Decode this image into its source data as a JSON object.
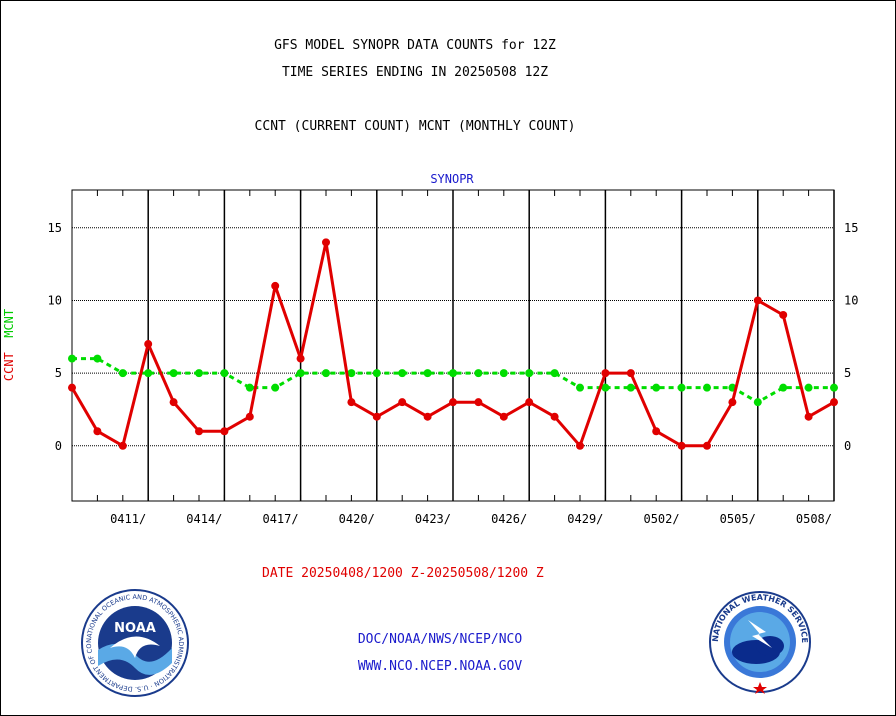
{
  "header": {
    "title_line1": "GFS MODEL SYNOPR DATA COUNTS for 12Z",
    "title_line2": "TIME SERIES ENDING IN 20250508 12Z",
    "subtitle": "CCNT (CURRENT COUNT) MCNT (MONTHLY COUNT)"
  },
  "ylabel": {
    "ccnt": "CCNT",
    "mcnt": "MCNT"
  },
  "footer": {
    "date_range": "DATE 20250408/1200 Z-20250508/1200 Z",
    "line1": "DOC/NOAA/NWS/NCEP/NCO",
    "line2": "WWW.NCO.NCEP.NOAA.GOV"
  },
  "logos": {
    "noaa_text": "NOAA",
    "noaa_ring": "NATIONAL OCEANIC AND ATMOSPHERIC ADMINISTRATION · U.S. DEPARTMENT OF COMMERCE ·",
    "nws_ring": "NATIONAL WEATHER SERVICE"
  },
  "colors": {
    "ccnt": "#e00000",
    "mcnt": "#00dd00",
    "plot_title": "#1a1acc",
    "footer": "#1a1acc"
  },
  "chart_data": {
    "type": "line",
    "plot_title": "SYNOPR",
    "x": [
      "0408",
      "0409",
      "0410",
      "0411",
      "0412",
      "0413",
      "0414",
      "0415",
      "0416",
      "0417",
      "0418",
      "0419",
      "0420",
      "0421",
      "0422",
      "0423",
      "0424",
      "0425",
      "0426",
      "0427",
      "0428",
      "0429",
      "0430",
      "0501",
      "0502",
      "0503",
      "0504",
      "0505",
      "0506",
      "0507",
      "0508"
    ],
    "xtick_labels": [
      "0411/",
      "0414/",
      "0417/",
      "0420/",
      "0423/",
      "0426/",
      "0429/",
      "0502/",
      "0505/",
      "0508/"
    ],
    "xtick_dates": [
      "0411",
      "0414",
      "0417",
      "0420",
      "0423",
      "0426",
      "0429",
      "0502",
      "0505",
      "0508"
    ],
    "ylim": [
      -3.8,
      17.6
    ],
    "yticks": [
      0,
      5,
      10,
      15
    ],
    "grid": true,
    "series": [
      {
        "name": "CCNT",
        "values": [
          4,
          1,
          0,
          7,
          3,
          1,
          1,
          2,
          11,
          6,
          14,
          3,
          2,
          3,
          2,
          3,
          3,
          2,
          3,
          2,
          0,
          5,
          5,
          1,
          0,
          0,
          3,
          10,
          9,
          2,
          3
        ]
      },
      {
        "name": "MCNT",
        "values": [
          6,
          6,
          5,
          5,
          5,
          5,
          5,
          4,
          4,
          5,
          5,
          5,
          5,
          5,
          5,
          5,
          5,
          5,
          5,
          5,
          4,
          4,
          4,
          4,
          4,
          4,
          4,
          3,
          4,
          4,
          4
        ]
      }
    ]
  }
}
